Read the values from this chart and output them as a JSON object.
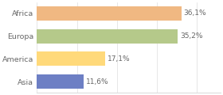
{
  "categories": [
    "Africa",
    "Europa",
    "America",
    "Asia"
  ],
  "values": [
    36.1,
    35.2,
    17.1,
    11.6
  ],
  "labels": [
    "36,1%",
    "35,2%",
    "17,1%",
    "11,6%"
  ],
  "bar_colors": [
    "#f0b882",
    "#b5c98a",
    "#ffd97a",
    "#6d7fc4"
  ],
  "background_color": "#ffffff",
  "xlim": [
    0,
    46
  ],
  "bar_height": 0.62,
  "label_fontsize": 6.5,
  "tick_fontsize": 6.8,
  "tick_color": "#666666",
  "grid_color": "#dddddd"
}
